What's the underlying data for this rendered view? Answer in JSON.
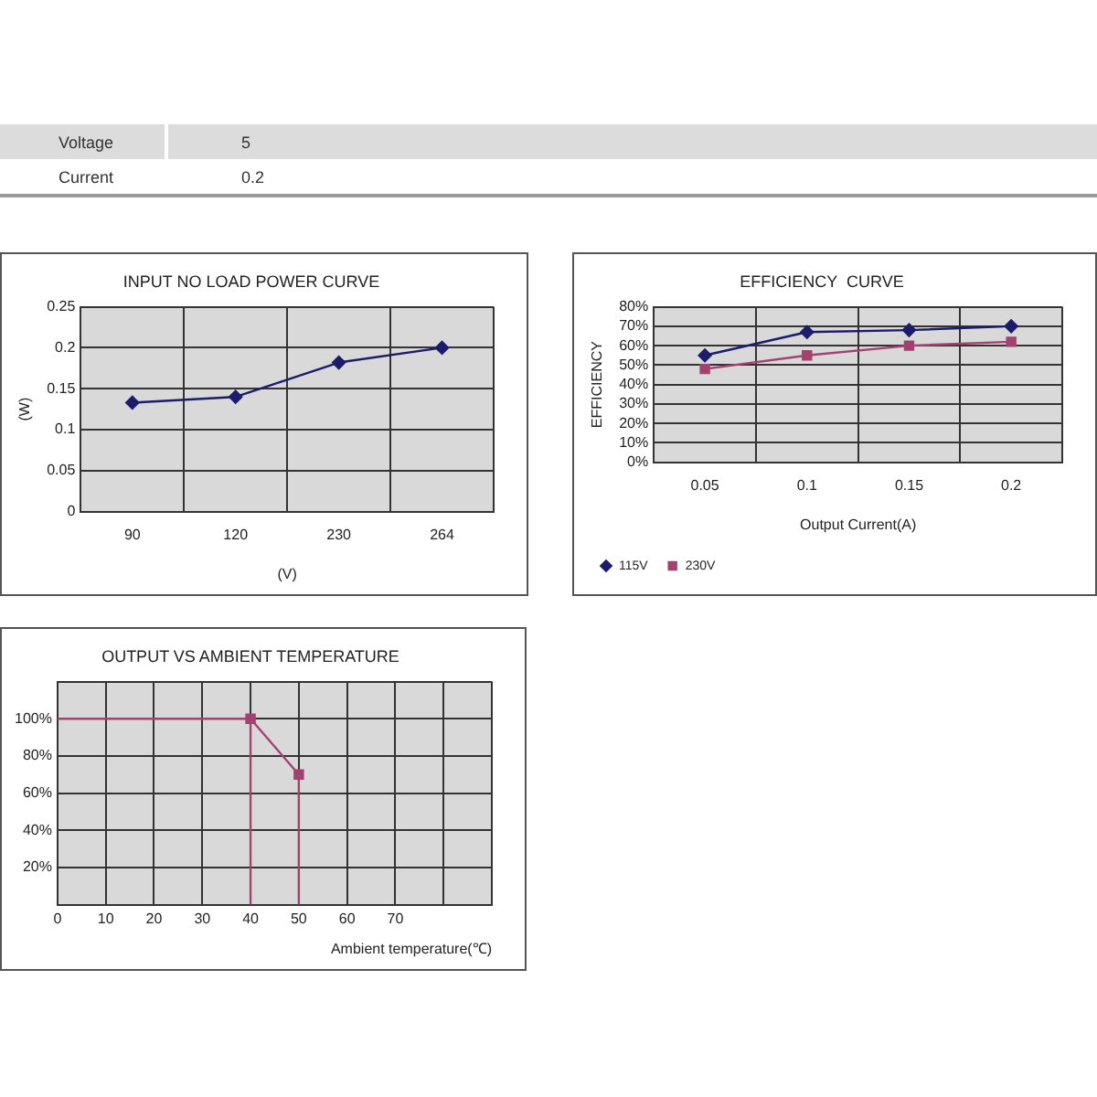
{
  "chart_data": [
    {
      "type": "other",
      "annotations": [
        "Voltage",
        "5",
        "Current",
        "0.2"
      ]
    },
    {
      "type": "line",
      "title": "INPUT NO LOAD POWER CURVE",
      "xlabel": "(V)",
      "ylabel": "(W)",
      "categories": [
        "90",
        "120",
        "230",
        "264"
      ],
      "series": [
        {
          "color": "#1c1c6b",
          "values": [
            0.133,
            0.14,
            0.182,
            0.2
          ]
        }
      ],
      "ylim": [
        0,
        0.25
      ],
      "yticks": [
        0,
        0.05,
        0.1,
        0.15,
        0.2,
        0.25
      ],
      "grid": true,
      "legend": false,
      "marker": "diamond"
    },
    {
      "type": "line",
      "title": "EFFICIENCY  CURVE",
      "xlabel": "Output Current(A)",
      "ylabel": "EFFICIENCY",
      "categories": [
        "0.05",
        "0.1",
        "0.15",
        "0.2"
      ],
      "series": [
        {
          "name": "115V",
          "color": "#1c1c6b",
          "marker": "diamond",
          "values": [
            55,
            67,
            68,
            70
          ]
        },
        {
          "name": "230V",
          "color": "#a3426f",
          "marker": "square",
          "values": [
            48,
            55,
            60,
            62
          ]
        }
      ],
      "ylim": [
        0,
        80
      ],
      "yticks": [
        {
          "value": 0,
          "label": "0%"
        },
        {
          "value": 10,
          "label": "10%"
        },
        {
          "value": 20,
          "label": "20%"
        },
        {
          "value": 30,
          "label": "30%"
        },
        {
          "value": 40,
          "label": "40%"
        },
        {
          "value": 50,
          "label": "50%"
        },
        {
          "value": 60,
          "label": "60%"
        },
        {
          "value": 70,
          "label": "70%"
        },
        {
          "value": 80,
          "label": "80%"
        }
      ],
      "grid": true,
      "legend": "bottom left"
    },
    {
      "type": "line",
      "title": "OUTPUT VS AMBIENT TEMPERATURE",
      "xlabel": "Ambient temperature(℃)",
      "series": [
        {
          "color": "#a3426f",
          "x": [
            0,
            40
          ],
          "values": [
            100,
            100
          ]
        },
        {
          "color": "#a3426f",
          "marker": "square",
          "x": [
            40,
            50
          ],
          "values": [
            100,
            70
          ]
        },
        {
          "color": "#a3426f",
          "x": [
            40,
            40
          ],
          "values": [
            100,
            0
          ]
        },
        {
          "color": "#a3426f",
          "x": [
            50,
            50
          ],
          "values": [
            70,
            0
          ]
        }
      ],
      "xlim": [
        0,
        90
      ],
      "xticks": [
        0,
        10,
        20,
        30,
        40,
        50,
        60,
        70,
        {
          "value": 80,
          "label": null
        },
        {
          "value": 90,
          "label": null
        }
      ],
      "ylim": [
        0,
        120
      ],
      "yticks": [
        {
          "value": 0,
          "label": null
        },
        {
          "value": 20,
          "label": "20%"
        },
        {
          "value": 40,
          "label": "40%"
        },
        {
          "value": 60,
          "label": "60%"
        },
        {
          "value": 80,
          "label": "80%"
        },
        {
          "value": 100,
          "label": "100%"
        },
        {
          "value": 120,
          "label": null
        }
      ],
      "grid": true,
      "legend": false
    }
  ]
}
